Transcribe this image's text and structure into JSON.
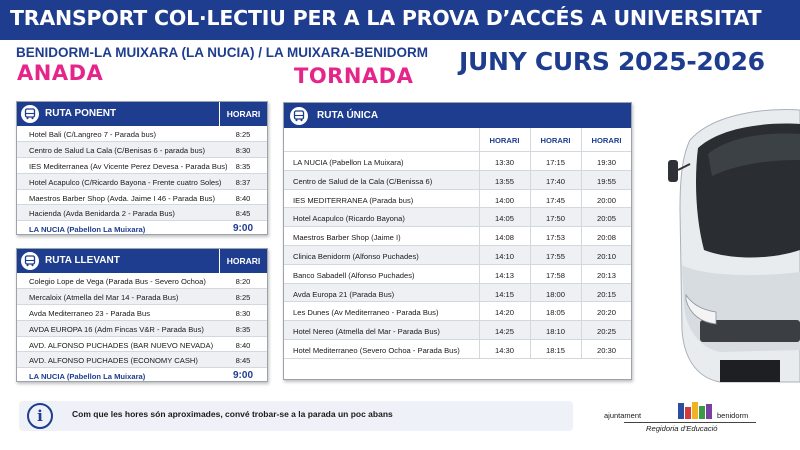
{
  "header": {
    "title": "TRANSPORT COL·LECTIU PER A LA PROVA D’ACCÉS A UNIVERSITAT",
    "route": "BENIDORM-LA MUIXARA (LA NUCIA) / LA MUIXARA-BENIDORM",
    "anada": "ANADA",
    "tornada": "TORNADA",
    "period": "JUNY CURS 2025-2026"
  },
  "colors": {
    "navy": "#1e3d8f",
    "pink": "#e5258a"
  },
  "ruta_ponent": {
    "title": "RUTA PONENT",
    "col": "HORARI",
    "stops": [
      {
        "stop": "Hotel Bali (C/Langreo 7 - Parada bus)",
        "time": "8:25"
      },
      {
        "stop": "Centro de Salud La Cala (C/Benisas 6 - parada bus)",
        "time": "8:30"
      },
      {
        "stop": "IES Mediterranea (Av Vicente Perez Devesa - Parada Bus)",
        "time": "8:35"
      },
      {
        "stop": "Hotel Acapulco (C/Ricardo Bayona - Frente cuatro Soles)",
        "time": "8:37"
      },
      {
        "stop": "Maestros Barber Shop (Avda. Jaime I 46 - Parada Bus)",
        "time": "8:40"
      },
      {
        "stop": "Hacienda (Avda Benidarda 2 - Parada Bus)",
        "time": "8:45"
      },
      {
        "stop": "LA NUCIA (Pabellon La Muixara)",
        "time": "9:00"
      }
    ]
  },
  "ruta_llevant": {
    "title": "RUTA LLEVANT",
    "col": "HORARI",
    "stops": [
      {
        "stop": "Colegio Lope de Vega (Parada Bus - Severo Ochoa)",
        "time": "8:20"
      },
      {
        "stop": "Mercaloix (Atmella del Mar 14 - Parada Bus)",
        "time": "8:25"
      },
      {
        "stop": "Avda Mediterraneo 23 - Parada Bus",
        "time": "8:30"
      },
      {
        "stop": "AVDA EUROPA 16 (Adm Fincas V&R - Parada Bus)",
        "time": "8:35"
      },
      {
        "stop": "AVD. ALFONSO PUCHADES (BAR NUEVO NEVADA)",
        "time": "8:40"
      },
      {
        "stop": "AVD. ALFONSO PUCHADES (ECONOMY CASH)",
        "time": "8:45"
      },
      {
        "stop": "LA NUCIA (Pabellon La Muixara)",
        "time": "9:00"
      }
    ]
  },
  "ruta_unica": {
    "title": "RUTA ÚNICA",
    "cols": [
      "HORARI",
      "HORARI",
      "HORARI"
    ],
    "stops": [
      {
        "stop": "LA NUCIA (Pabellon La Muixara)",
        "times": [
          "13:30",
          "17:15",
          "19:30"
        ]
      },
      {
        "stop": "Centro de Salud de la Cala (C/Benissa 6)",
        "times": [
          "13:55",
          "17:40",
          "19:55"
        ]
      },
      {
        "stop": "IES MEDITERRANEA (Parada bus)",
        "times": [
          "14:00",
          "17:45",
          "20:00"
        ]
      },
      {
        "stop": "Hotel Acapulco (Ricardo Bayona)",
        "times": [
          "14:05",
          "17:50",
          "20:05"
        ]
      },
      {
        "stop": "Maestros Barber Shop (Jaime I)",
        "times": [
          "14:08",
          "17:53",
          "20:08"
        ]
      },
      {
        "stop": "Clinica Benidorm (Alfonso Puchades)",
        "times": [
          "14:10",
          "17:55",
          "20:10"
        ]
      },
      {
        "stop": "Banco Sabadell (Alfonso Puchades)",
        "times": [
          "14:13",
          "17:58",
          "20:13"
        ]
      },
      {
        "stop": "Avda Europa 21 (Parada Bus)",
        "times": [
          "14:15",
          "18:00",
          "20:15"
        ]
      },
      {
        "stop": "Les Dunes (Av Mediterraneo - Parada Bus)",
        "times": [
          "14:20",
          "18:05",
          "20:20"
        ]
      },
      {
        "stop": "Hotel Nereo (Atmella del Mar - Parada Bus)",
        "times": [
          "14:25",
          "18:10",
          "20:25"
        ]
      },
      {
        "stop": "Hotel Mediterraneo (Severo Ochoa - Parada Bus)",
        "times": [
          "14:30",
          "18:15",
          "20:30"
        ]
      }
    ]
  },
  "notice": {
    "icon": "info-icon",
    "text": "Com que les hores són aproximades, convé trobar-se a la parada un poc abans"
  },
  "logo": {
    "left": "ajuntament",
    "right": "benidorm",
    "dept": "Regidoria d'Educació"
  }
}
